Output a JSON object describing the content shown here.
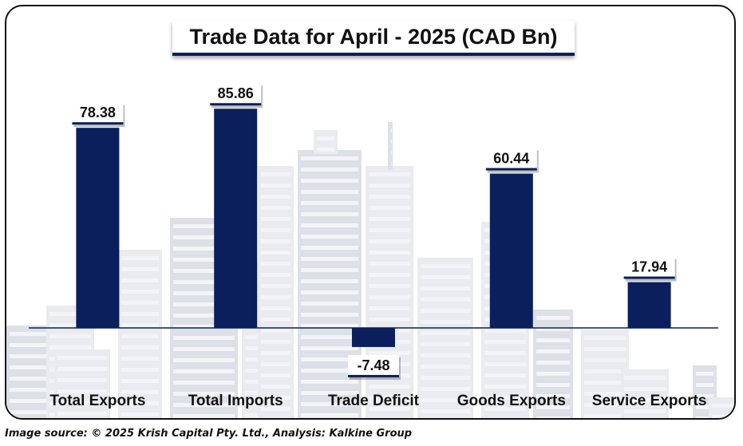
{
  "chart_data": {
    "type": "bar",
    "title": "Trade Data for April - 2025 (CAD Bn)",
    "categories": [
      "Total Exports",
      "Total Imports",
      "Trade Deficit",
      "Goods Exports",
      "Service Exports"
    ],
    "values": [
      78.38,
      85.86,
      -7.48,
      60.44,
      17.94
    ],
    "data_labels": [
      "78.38",
      "85.86",
      "-7.48",
      "60.44",
      "17.94"
    ],
    "xlabel": "",
    "ylabel": "",
    "ylim": [
      -10,
      100
    ],
    "grid": false,
    "legend": "none",
    "bar_color": "#0a1f5c",
    "axis_color": "#0a1f5c"
  },
  "caption": "Image source: © 2025 Krish Capital Pty. Ltd., Analysis: Kalkine Group",
  "colors": {
    "background_buildings": "#e9ebef",
    "background_buildings_dark": "#dde0e6",
    "frame_border": "#111111"
  }
}
